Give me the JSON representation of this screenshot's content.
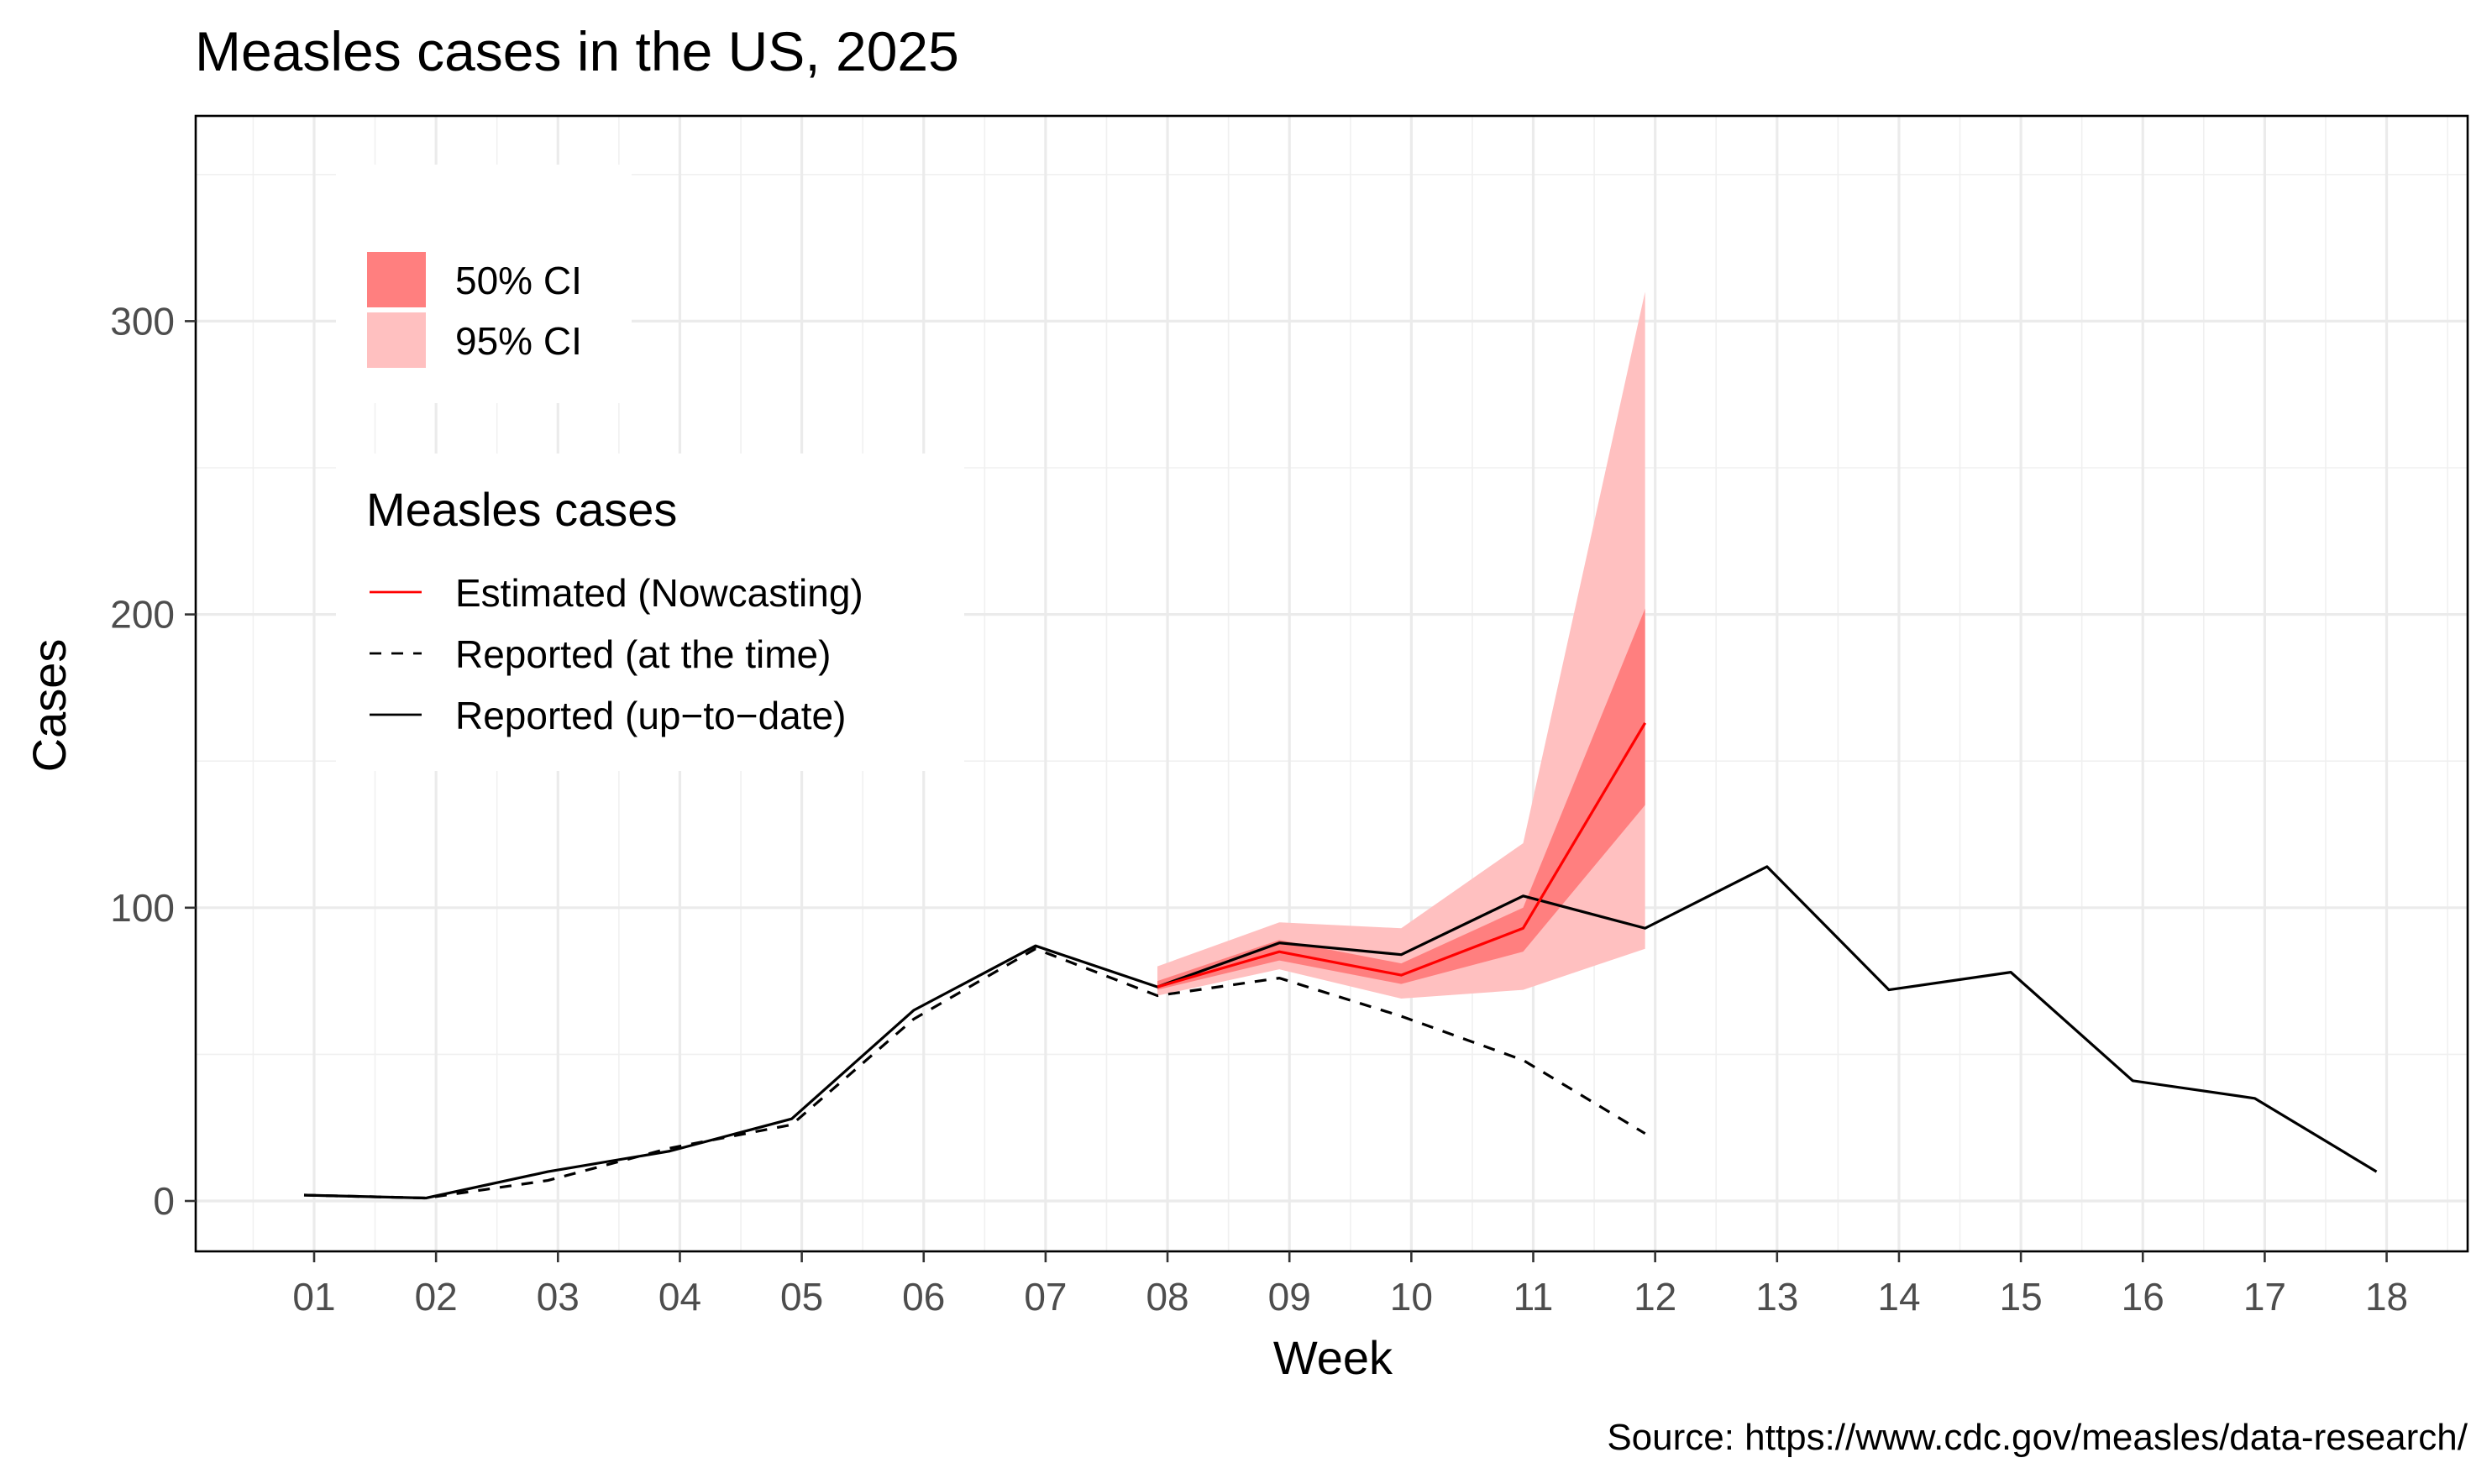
{
  "chart_data": {
    "type": "line",
    "title": "Measles cases in the US, 2025",
    "caption": "Source: https://www.cdc.gov/measles/data-research/",
    "xlabel": "Week",
    "ylabel": "Cases",
    "x_ticks": [
      "01",
      "02",
      "03",
      "04",
      "05",
      "06",
      "07",
      "08",
      "09",
      "10",
      "11",
      "12",
      "13",
      "14",
      "15",
      "16",
      "17",
      "18"
    ],
    "y_ticks": [
      0,
      100,
      200,
      300
    ],
    "ylim": [
      -17,
      370
    ],
    "grid": true,
    "series": [
      {
        "name": "Estimated (Nowcasting)",
        "color": "#ff0000",
        "style": "solid",
        "x": [
          "08",
          "09",
          "10",
          "11",
          "12"
        ],
        "values": [
          73,
          85,
          77,
          93,
          163
        ]
      },
      {
        "name": "Reported (at the time)",
        "color": "#000000",
        "style": "dashed",
        "x": [
          "01",
          "02",
          "03",
          "04",
          "05",
          "06",
          "07",
          "08",
          "09",
          "10",
          "11",
          "12"
        ],
        "values": [
          2,
          1,
          7,
          18,
          26,
          62,
          86,
          70,
          76,
          63,
          48,
          23
        ]
      },
      {
        "name": "Reported (up-to-date)",
        "color": "#000000",
        "style": "solid",
        "x": [
          "01",
          "02",
          "03",
          "04",
          "05",
          "06",
          "07",
          "08",
          "09",
          "10",
          "11",
          "12",
          "13",
          "14",
          "15",
          "16",
          "17",
          "18"
        ],
        "values": [
          2,
          1,
          10,
          17,
          28,
          65,
          87,
          73,
          88,
          84,
          104,
          93,
          114,
          72,
          78,
          41,
          35,
          10
        ]
      }
    ],
    "bands": [
      {
        "name": "95% CI",
        "color": "#ffc0c0",
        "x": [
          "08",
          "09",
          "10",
          "11",
          "12"
        ],
        "lower": [
          70,
          79,
          69,
          72,
          86
        ],
        "upper": [
          80,
          95,
          93,
          122,
          310
        ]
      },
      {
        "name": "50% CI",
        "color": "#ff7f7f",
        "x": [
          "08",
          "09",
          "10",
          "11",
          "12"
        ],
        "lower": [
          72,
          82,
          74,
          85,
          135
        ],
        "upper": [
          75,
          89,
          81,
          100,
          202
        ]
      }
    ],
    "legend_ci": {
      "placement": "top-left",
      "items": [
        {
          "label": "50% CI",
          "color": "#ff7f7f"
        },
        {
          "label": "95% CI",
          "color": "#ffc0c0"
        }
      ]
    },
    "legend_lines": {
      "placement": "top-left",
      "title": "Measles cases",
      "items": [
        {
          "label": "Estimated (Nowcasting)",
          "color": "#ff0000",
          "style": "solid"
        },
        {
          "label": "Reported (at the time)",
          "color": "#000000",
          "style": "dashed"
        },
        {
          "label": "Reported (up−to−date)",
          "color": "#000000",
          "style": "solid"
        }
      ]
    }
  }
}
